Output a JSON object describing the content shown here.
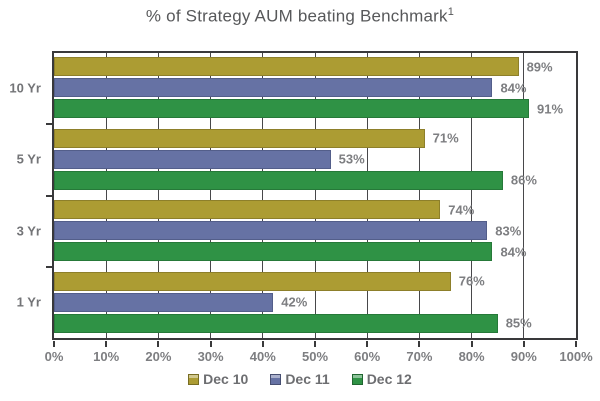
{
  "title": {
    "text": "% of Strategy AUM beating Benchmark",
    "superscript": "1"
  },
  "chart_data": {
    "type": "bar",
    "orientation": "horizontal",
    "title": "% of Strategy AUM beating Benchmark¹",
    "categories": [
      "10 Yr",
      "5 Yr",
      "3 Yr",
      "1 Yr"
    ],
    "series": [
      {
        "name": "Dec 10",
        "color": "#ac9c33",
        "edge_color": "#8d7f2a",
        "values": [
          89,
          71,
          74,
          76
        ]
      },
      {
        "name": "Dec 11",
        "color": "#6672a4",
        "edge_color": "#535e8a",
        "values": [
          84,
          53,
          83,
          42
        ]
      },
      {
        "name": "Dec 12",
        "color": "#2f9245",
        "edge_color": "#267939",
        "values": [
          91,
          86,
          84,
          85
        ]
      }
    ],
    "value_labels": [
      [
        "89%",
        "84%",
        "91%"
      ],
      [
        "71%",
        "53%",
        "86%"
      ],
      [
        "74%",
        "83%",
        "84%"
      ],
      [
        "76%",
        "42%",
        "85%"
      ]
    ],
    "value_suffix": "%",
    "xlim": [
      0,
      100
    ],
    "x_ticks": [
      0,
      10,
      20,
      30,
      40,
      50,
      60,
      70,
      80,
      90,
      100
    ],
    "x_tick_labels": [
      "0%",
      "10%",
      "20%",
      "30%",
      "40%",
      "50%",
      "60%",
      "70%",
      "80%",
      "90%",
      "100%"
    ],
    "grid": "vertical gridlines every 10%",
    "legend_position": "bottom"
  },
  "colors": {
    "axis": "#39393b",
    "gridline": "#47474a",
    "tick_text": "#7d7e81",
    "category_text": "#737477",
    "value_text": "#7d7e81",
    "legend_text": "#6d6e71",
    "title_text": "#57585a",
    "background": "#ffffff"
  }
}
